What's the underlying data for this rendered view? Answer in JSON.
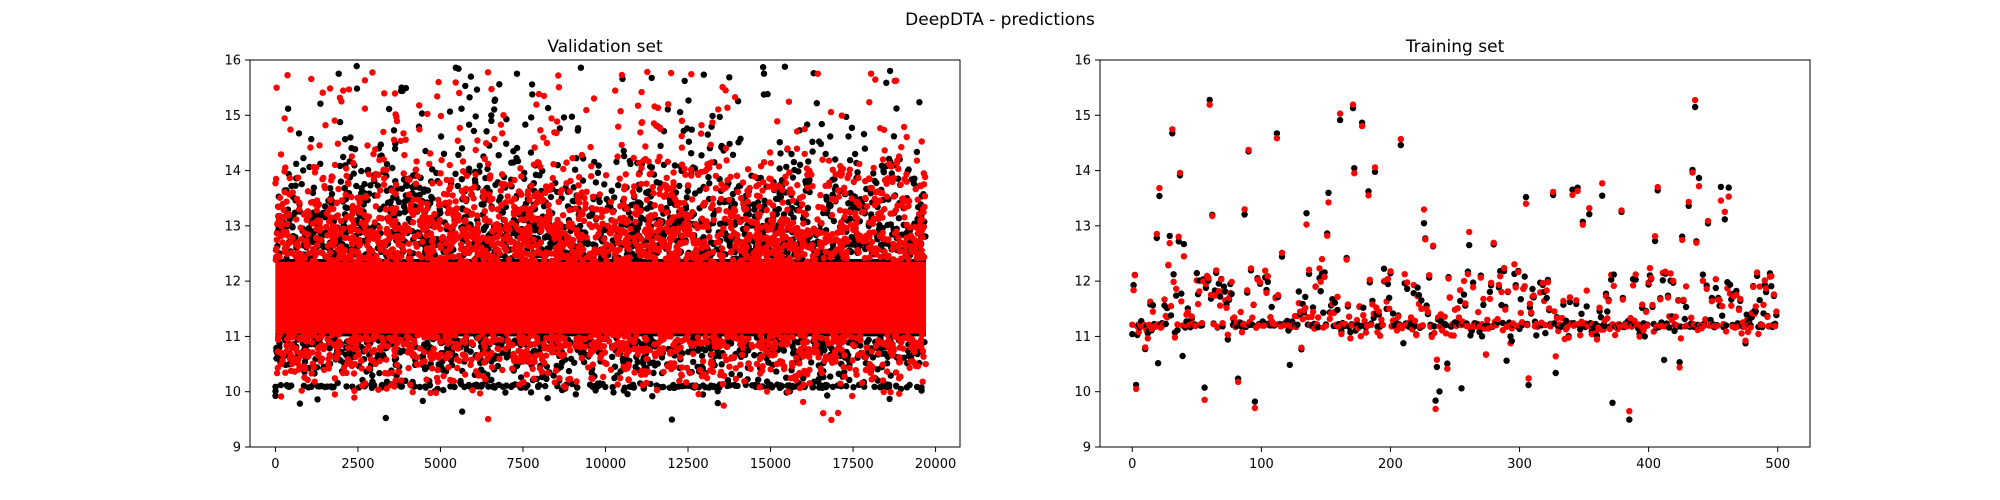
{
  "figure": {
    "title": "DeepDTA - predictions"
  },
  "colors": {
    "true_series": "#000000",
    "predicted_series": "#ff0000"
  },
  "chart_data": [
    {
      "type": "scatter",
      "title": "Validation set",
      "xlabel": "",
      "ylabel": "",
      "xlim": [
        -770,
        20740
      ],
      "ylim": [
        9,
        16
      ],
      "xticks": [
        0,
        2500,
        5000,
        7500,
        10000,
        12500,
        15000,
        17500,
        20000
      ],
      "xtick_labels": [
        "0",
        "2500",
        "5000",
        "7500",
        "10000",
        "12500",
        "15000",
        "17500",
        "20000"
      ],
      "yticks": [
        9,
        10,
        11,
        12,
        13,
        14,
        15,
        16
      ],
      "ytick_labels": [
        "9",
        "10",
        "11",
        "12",
        "13",
        "14",
        "15",
        "16"
      ],
      "grid": false,
      "n_points": 19709,
      "series": [
        {
          "color": "#000000",
          "core_band": [
            11.0,
            12.4
          ],
          "x_range": [
            0,
            19709
          ]
        },
        {
          "color": "#ff0000",
          "core_band": [
            11.05,
            12.35
          ],
          "x_range": [
            0,
            19709
          ]
        }
      ]
    },
    {
      "type": "scatter",
      "title": "Training set",
      "xlabel": "",
      "ylabel": "",
      "xlim": [
        -25,
        525
      ],
      "ylim": [
        9,
        16
      ],
      "xticks": [
        0,
        100,
        200,
        300,
        400,
        500
      ],
      "xtick_labels": [
        "0",
        "100",
        "200",
        "300",
        "400",
        "500"
      ],
      "yticks": [
        9,
        10,
        11,
        12,
        13,
        14,
        15,
        16
      ],
      "ytick_labels": [
        "9",
        "10",
        "11",
        "12",
        "13",
        "14",
        "15",
        "16"
      ],
      "grid": false,
      "n_points": 500,
      "series": [
        {
          "color": "#000000",
          "x_range": [
            0,
            499
          ]
        },
        {
          "color": "#ff0000",
          "x_range": [
            0,
            499
          ]
        }
      ]
    }
  ]
}
